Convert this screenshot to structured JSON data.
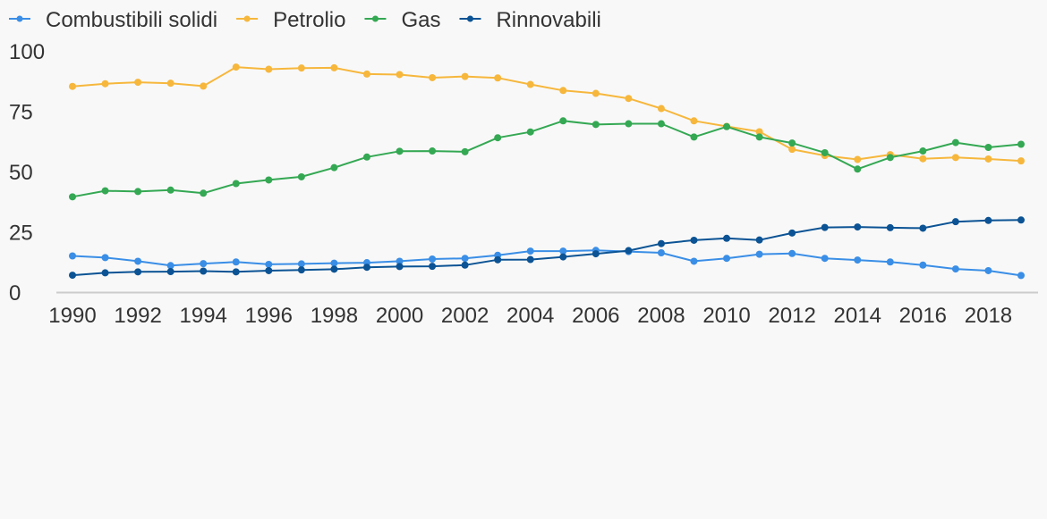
{
  "chart_data": {
    "type": "line",
    "title": "",
    "xlabel": "",
    "ylabel": "",
    "x": [
      1990,
      1991,
      1992,
      1993,
      1994,
      1995,
      1996,
      1997,
      1998,
      1999,
      2000,
      2001,
      2002,
      2003,
      2004,
      2005,
      2006,
      2007,
      2008,
      2009,
      2010,
      2011,
      2012,
      2013,
      2014,
      2015,
      2016,
      2017,
      2018,
      2019
    ],
    "xlim": [
      1990,
      2019
    ],
    "ylim": [
      0,
      100
    ],
    "x_ticks": [
      1990,
      1992,
      1994,
      1996,
      1998,
      2000,
      2002,
      2004,
      2006,
      2008,
      2010,
      2012,
      2014,
      2016,
      2018
    ],
    "y_ticks": [
      0,
      25,
      50,
      75,
      100
    ],
    "legend_position": "top-left",
    "grid": false,
    "series": [
      {
        "name": "Combustibili solidi",
        "color": "#3a8ee6",
        "values": [
          15,
          14.3,
          12.8,
          11,
          11.8,
          12.5,
          11.5,
          11.7,
          12,
          12.2,
          12.8,
          13.7,
          14,
          15.3,
          17,
          17,
          17.3,
          16.8,
          16.3,
          12.8,
          14,
          15.7,
          16,
          14,
          13.3,
          12.5,
          11.2,
          9.6,
          8.9,
          6.9
        ]
      },
      {
        "name": "Petrolio",
        "color": "#f6b73c",
        "values": [
          85.3,
          86.4,
          87,
          86.6,
          85.4,
          93.3,
          92.4,
          92.9,
          93,
          90.4,
          90.2,
          88.9,
          89.4,
          88.8,
          86.1,
          83.6,
          82.4,
          80.3,
          76.1,
          71,
          68.7,
          66.5,
          59.2,
          56.6,
          55,
          57,
          55.3,
          55.8,
          55.2,
          54.4
        ]
      },
      {
        "name": "Gas",
        "color": "#34a853",
        "values": [
          39.5,
          42,
          41.7,
          42.3,
          41,
          45,
          46.5,
          47.8,
          51.6,
          56,
          58.4,
          58.5,
          58.2,
          64,
          66.4,
          71,
          69.5,
          69.8,
          69.8,
          64.3,
          68.6,
          64.3,
          61.8,
          57.8,
          51,
          55.8,
          58.5,
          62,
          60,
          61.3
        ]
      },
      {
        "name": "Rinnovabili",
        "color": "#0b5394",
        "values": [
          7,
          8,
          8.4,
          8.5,
          8.7,
          8.4,
          8.9,
          9.2,
          9.5,
          10.3,
          10.6,
          10.7,
          11.2,
          13.4,
          13.5,
          14.6,
          15.9,
          17.2,
          20.1,
          21.5,
          22.3,
          21.6,
          24.5,
          26.8,
          27,
          26.7,
          26.5,
          29.2,
          29.7,
          29.9
        ]
      }
    ]
  }
}
